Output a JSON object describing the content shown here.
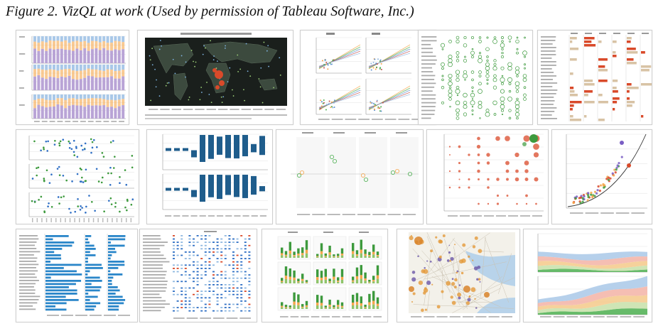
{
  "figure": {
    "caption": "Figure 2. VizQL at work (Used by permission of Tableau Software, Inc.)"
  },
  "colors": {
    "blue": "#1f5d8c",
    "light_blue": "#a9c8e8",
    "orange": "#f5a64b",
    "green": "#4caf50",
    "red": "#d94a2a",
    "purple": "#b9a4d6",
    "map_dark": "#1a1f1c",
    "tan": "#d8c3a5"
  },
  "panels": [
    {
      "name": "stacked-bar-chart-panel",
      "kind": "stacked-bars"
    },
    {
      "name": "world-map-panel",
      "kind": "world-map"
    },
    {
      "name": "scatter-trend-grid-panel",
      "kind": "trend-grid"
    },
    {
      "name": "circle-matrix-panel",
      "kind": "circle-matrix"
    },
    {
      "name": "bar-table-panel",
      "kind": "bar-table"
    },
    {
      "name": "dot-strip-panel",
      "kind": "dot-strip"
    },
    {
      "name": "waterfall-bars-panel",
      "kind": "waterfall"
    },
    {
      "name": "sparse-scatter-panel",
      "kind": "sparse-scatter"
    },
    {
      "name": "bubble-grid-panel",
      "kind": "bubble-grid"
    },
    {
      "name": "curve-scatter-panel",
      "kind": "curve-scatter"
    },
    {
      "name": "horizontal-bars-panel",
      "kind": "hbars"
    },
    {
      "name": "text-table-panel",
      "kind": "text-table"
    },
    {
      "name": "small-multiples-bars-panel",
      "kind": "small-multiples"
    },
    {
      "name": "street-map-panel",
      "kind": "street-map"
    },
    {
      "name": "area-chart-panel",
      "kind": "area"
    }
  ]
}
